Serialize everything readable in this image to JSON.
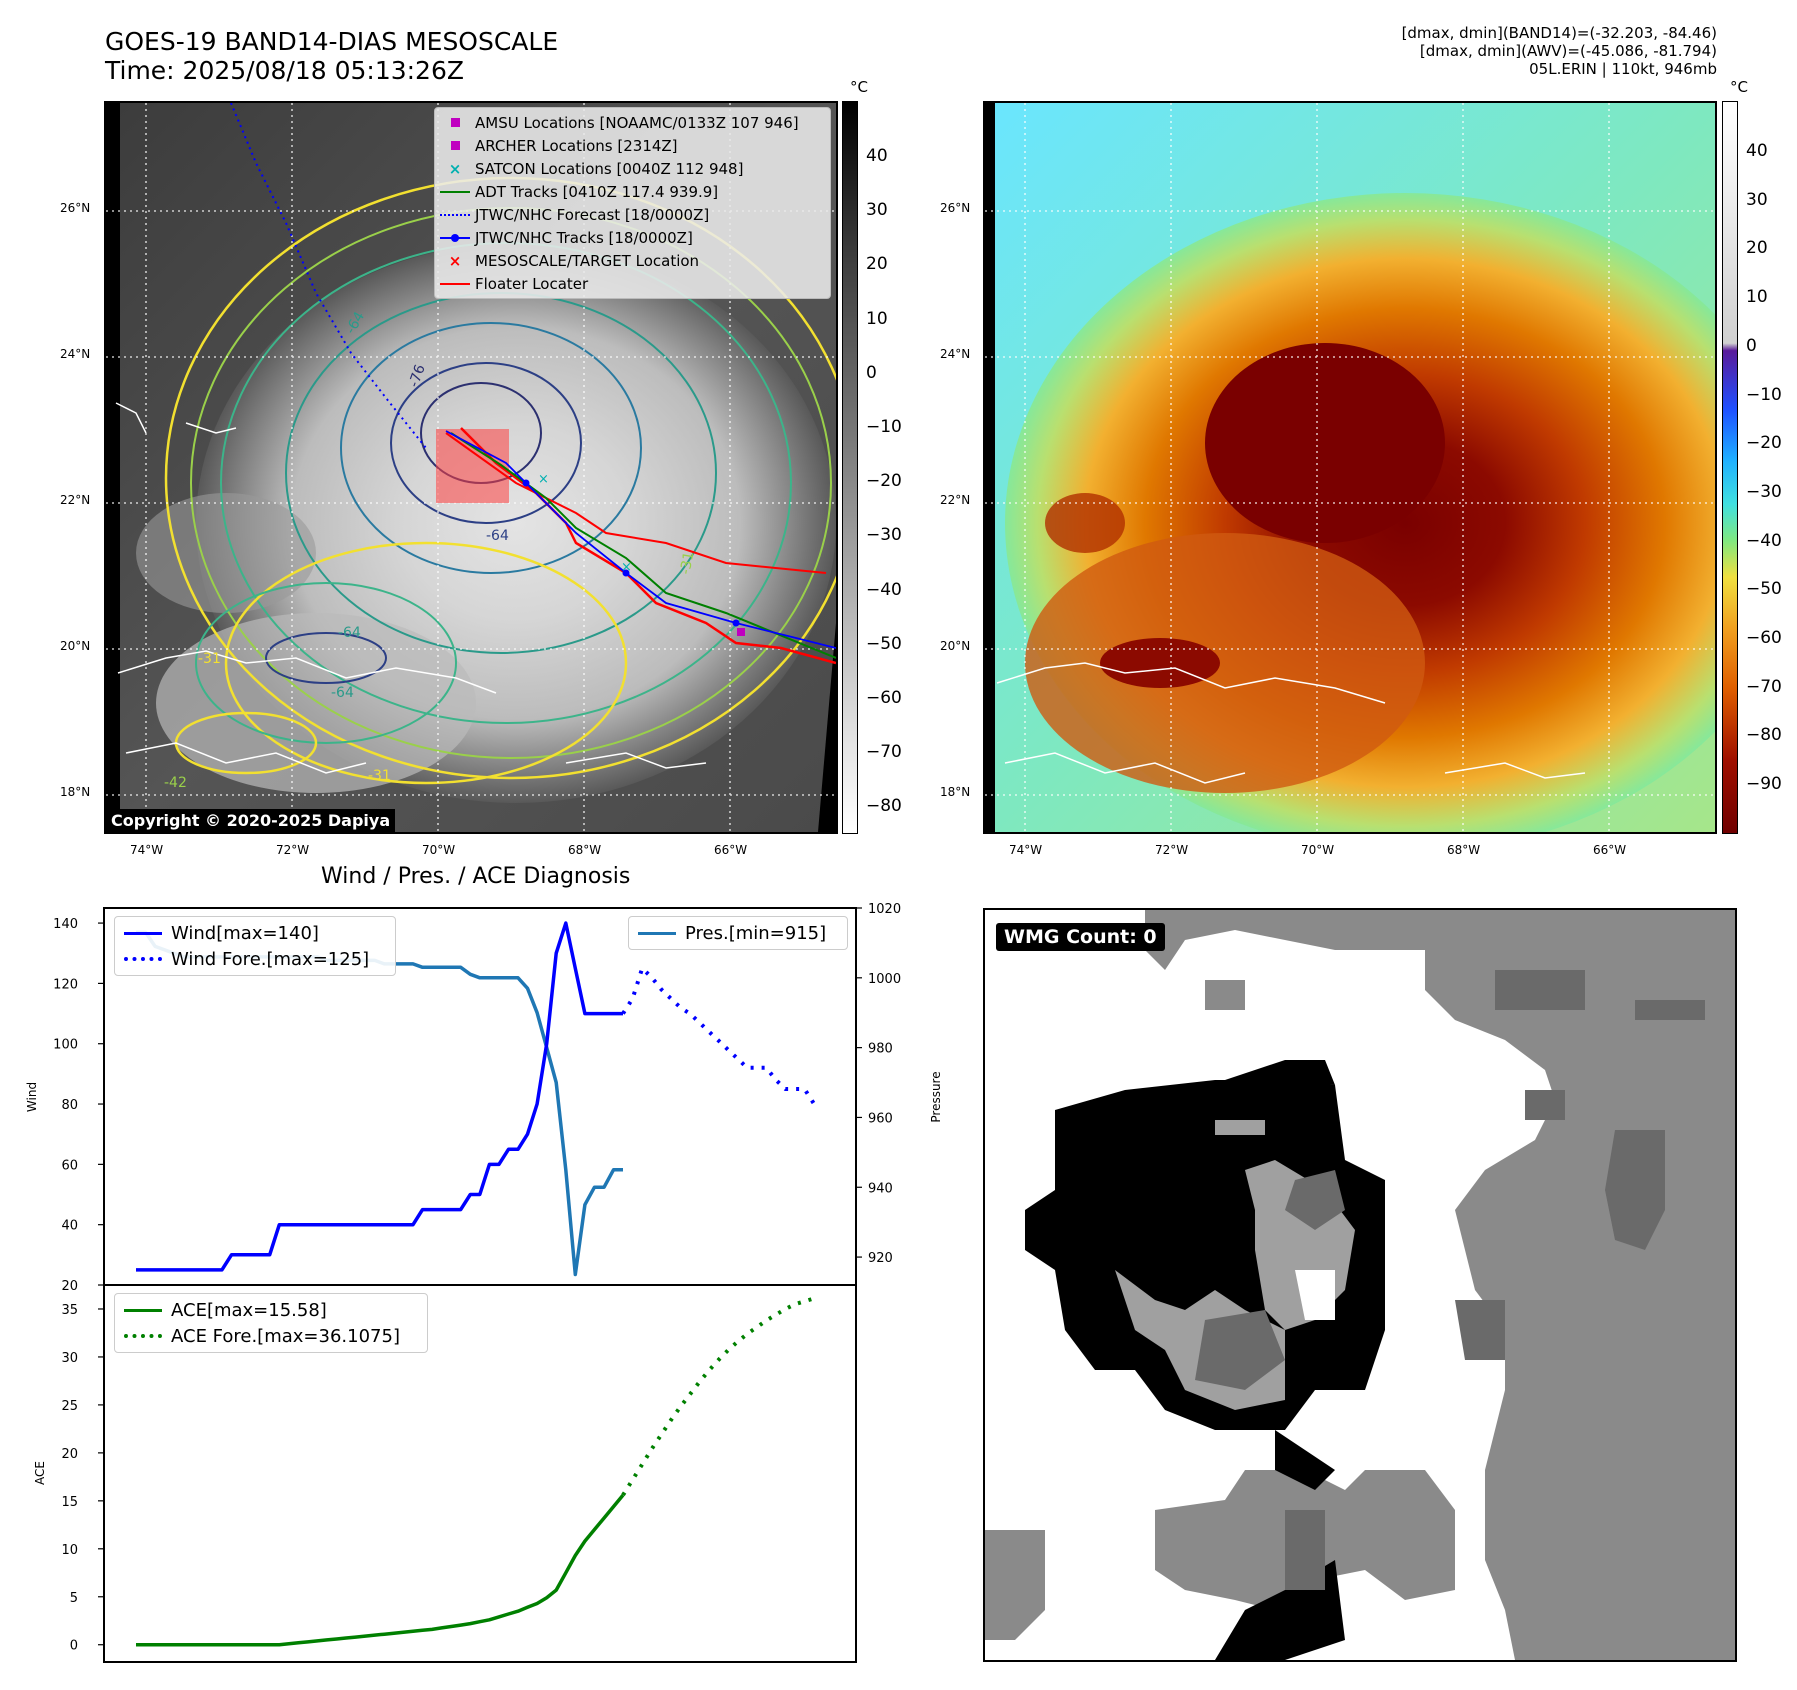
{
  "header": {
    "title_line1": "GOES-19 BAND14-DIAS MESOSCALE",
    "title_line2": "Time: 2025/08/18 05:13:26Z",
    "note_line1": "[dmax, dmin](BAND14)=(-32.203, -84.46)",
    "note_line2": "[dmax, dmin](AWV)=(-45.086, -81.794)",
    "note_line3": "05L.ERIN | 110kt, 946mb"
  },
  "map_panel": {
    "lat_labels": [
      "26°N",
      "24°N",
      "22°N",
      "20°N",
      "18°N"
    ],
    "lon_labels": [
      "74°W",
      "72°W",
      "70°W",
      "68°W",
      "66°W"
    ],
    "copyright": "Copyright © 2020-2025 Dapiya",
    "contour_labels": [
      "-64",
      "-76",
      "-64",
      "-31",
      "-64",
      "-31",
      "-64",
      "-31",
      "-42"
    ],
    "legend": [
      {
        "label": "AMSU Locations [NOAAMC/0133Z 107 946]",
        "color": "#c000c0",
        "marker": "square"
      },
      {
        "label": "ARCHER Locations [2314Z]",
        "color": "#c000c0",
        "marker": "square"
      },
      {
        "label": "SATCON Locations [0040Z 112 948]",
        "color": "#00b0b0",
        "marker": "x"
      },
      {
        "label": "ADT Tracks [0410Z 117.4 939.9]",
        "color": "#008000",
        "marker": "line"
      },
      {
        "label": "JTWC/NHC Forecast [18/0000Z]",
        "color": "#0000ff",
        "marker": "dotted"
      },
      {
        "label": "JTWC/NHC Tracks [18/0000Z]",
        "color": "#0000ff",
        "marker": "line-dot"
      },
      {
        "label": "MESOSCALE/TARGET Location",
        "color": "#ff0000",
        "marker": "x"
      },
      {
        "label": "Floater Locater",
        "color": "#ff0000",
        "marker": "line"
      }
    ],
    "colorbar_unit": "°C",
    "colorbar_ticks": [
      "40",
      "30",
      "20",
      "10",
      "0",
      "−10",
      "−20",
      "−30",
      "−40",
      "−50",
      "−60",
      "−70",
      "−80"
    ]
  },
  "awv_panel": {
    "lat_labels": [
      "26°N",
      "24°N",
      "22°N",
      "20°N",
      "18°N"
    ],
    "lon_labels": [
      "74°W",
      "72°W",
      "70°W",
      "68°W",
      "66°W"
    ],
    "colorbar_unit": "°C",
    "colorbar_ticks": [
      "40",
      "30",
      "20",
      "10",
      "0",
      "−10",
      "−20",
      "−30",
      "−40",
      "−50",
      "−60",
      "−70",
      "−80",
      "−90"
    ]
  },
  "wmg_panel": {
    "count_label": "WMG Count: 0"
  },
  "chart_data": [
    {
      "type": "line",
      "title": "Wind / Pres. / ACE Diagnosis",
      "ylabel": "Wind",
      "ylabel_right": "Pressure",
      "ylim": [
        20,
        145
      ],
      "ylim_right": [
        912,
        1020
      ],
      "y_ticks": [
        "140",
        "120",
        "100",
        "80",
        "60",
        "40",
        "20"
      ],
      "y_right_ticks": [
        "1020",
        "1000",
        "980",
        "960",
        "940",
        "920"
      ],
      "series": [
        {
          "name": "Wind[max=140]",
          "color": "#0000ff",
          "style": "solid",
          "values": [
            25,
            25,
            25,
            25,
            25,
            25,
            25,
            25,
            25,
            25,
            30,
            30,
            30,
            30,
            30,
            40,
            40,
            40,
            40,
            40,
            40,
            40,
            40,
            40,
            40,
            40,
            40,
            40,
            40,
            40,
            45,
            45,
            45,
            45,
            45,
            50,
            50,
            60,
            60,
            65,
            65,
            70,
            80,
            100,
            130,
            140,
            125,
            110,
            110,
            110,
            110,
            110
          ]
        },
        {
          "name": "Wind Fore.[max=125]",
          "color": "#0000ff",
          "style": "dotted",
          "values": [
            110,
            115,
            125,
            122,
            118,
            115,
            112,
            110,
            107,
            104,
            101,
            98,
            95,
            92,
            92,
            92,
            88,
            85,
            85,
            85,
            80
          ]
        },
        {
          "name": "Pres.[min=915]",
          "color": "#1f77b4",
          "style": "solid",
          "values": [
            1013,
            1013,
            1009,
            1008,
            1007,
            1006,
            1006,
            1006,
            1006,
            1006,
            1006,
            1006,
            1006,
            1006,
            1006,
            1006,
            1006,
            1006,
            1006,
            1006,
            1005,
            1005,
            1005,
            1005,
            1005,
            1005,
            1004,
            1004,
            1004,
            1004,
            1003,
            1003,
            1003,
            1003,
            1003,
            1001,
            1000,
            1000,
            1000,
            1000,
            1000,
            997,
            990,
            980,
            970,
            945,
            915,
            935,
            940,
            940,
            945,
            945
          ]
        }
      ]
    },
    {
      "type": "line",
      "ylabel": "ACE",
      "ylim": [
        -1.8,
        37.5
      ],
      "y_ticks": [
        "35",
        "30",
        "25",
        "20",
        "15",
        "10",
        "5",
        "0"
      ],
      "series": [
        {
          "name": "ACE[max=15.58]",
          "color": "#008000",
          "style": "solid",
          "values": [
            0,
            0,
            0,
            0,
            0,
            0,
            0,
            0,
            0,
            0,
            0,
            0,
            0,
            0,
            0,
            0,
            0.1,
            0.2,
            0.3,
            0.4,
            0.5,
            0.6,
            0.7,
            0.8,
            0.9,
            1.0,
            1.1,
            1.2,
            1.3,
            1.4,
            1.5,
            1.6,
            1.75,
            1.9,
            2.05,
            2.2,
            2.4,
            2.6,
            2.9,
            3.2,
            3.5,
            3.9,
            4.3,
            4.9,
            5.7,
            7.5,
            9.3,
            10.8,
            12.0,
            13.2,
            14.4,
            15.6
          ]
        },
        {
          "name": "ACE Fore.[max=36.1075]",
          "color": "#008000",
          "style": "dotted",
          "values": [
            15.6,
            17.2,
            18.8,
            20.4,
            21.9,
            23.4,
            24.8,
            26.1,
            27.4,
            28.6,
            29.7,
            30.7,
            31.6,
            32.4,
            33.1,
            33.8,
            34.4,
            35.0,
            35.5,
            35.8,
            36.1
          ]
        }
      ]
    }
  ]
}
